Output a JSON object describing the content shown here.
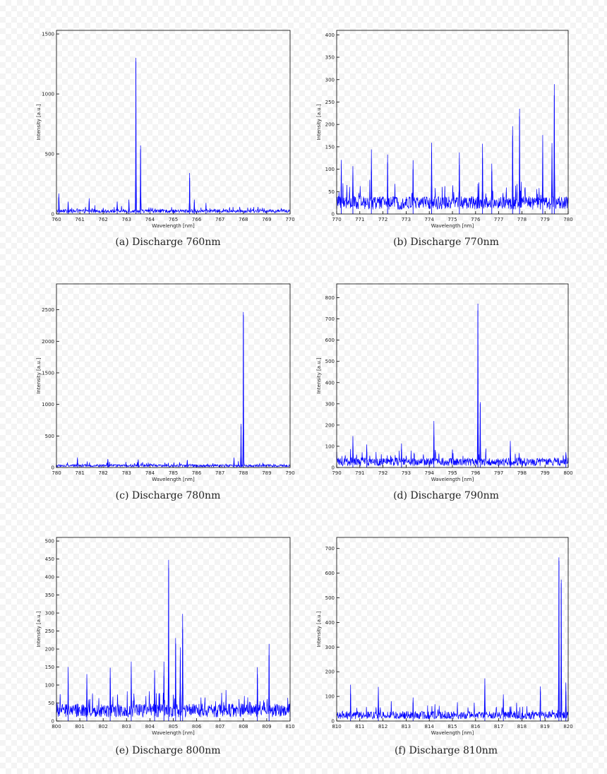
{
  "colors": {
    "line": "#0000ff",
    "axis": "#000000",
    "text": "#222222"
  },
  "chart_data": [
    {
      "type": "line",
      "caption": "(a) Discharge 760nm",
      "xlabel": "Wavelength [nm]",
      "ylabel": "Intensity [a.u.]",
      "xlim": [
        760,
        770
      ],
      "ylim": [
        0,
        1530
      ],
      "xticks": [
        760,
        761,
        762,
        763,
        764,
        765,
        766,
        767,
        768,
        769,
        770
      ],
      "yticks": [
        0,
        500,
        1000,
        1500
      ],
      "grid": false,
      "series": [
        {
          "baseline": 28,
          "noise": 28,
          "peaks": [
            {
              "x": 760.1,
              "y": 140
            },
            {
              "x": 760.5,
              "y": 90
            },
            {
              "x": 761.4,
              "y": 105
            },
            {
              "x": 762.6,
              "y": 85
            },
            {
              "x": 763.1,
              "y": 95
            },
            {
              "x": 763.4,
              "y": 1270
            },
            {
              "x": 763.6,
              "y": 540
            },
            {
              "x": 765.7,
              "y": 300
            },
            {
              "x": 765.9,
              "y": 95
            },
            {
              "x": 766.4,
              "y": 70
            }
          ]
        }
      ]
    },
    {
      "type": "line",
      "caption": "(b) Discharge 770nm",
      "xlabel": "Wavelength [nm]",
      "ylabel": "Intensity [a.u.]",
      "xlim": [
        770,
        780
      ],
      "ylim": [
        0,
        410
      ],
      "xticks": [
        770,
        771,
        772,
        773,
        774,
        775,
        776,
        777,
        778,
        779,
        780
      ],
      "yticks": [
        0,
        50,
        100,
        150,
        200,
        250,
        300,
        350,
        400
      ],
      "grid": false,
      "series": [
        {
          "baseline": 28,
          "noise": 30,
          "peaks": [
            {
              "x": 770.2,
              "y": 95
            },
            {
              "x": 770.7,
              "y": 92
            },
            {
              "x": 771.5,
              "y": 95
            },
            {
              "x": 772.2,
              "y": 115
            },
            {
              "x": 773.3,
              "y": 100
            },
            {
              "x": 774.1,
              "y": 138
            },
            {
              "x": 775.3,
              "y": 110
            },
            {
              "x": 776.3,
              "y": 125
            },
            {
              "x": 776.7,
              "y": 95
            },
            {
              "x": 777.6,
              "y": 175
            },
            {
              "x": 777.9,
              "y": 218
            },
            {
              "x": 778.9,
              "y": 125
            },
            {
              "x": 779.3,
              "y": 130
            },
            {
              "x": 779.4,
              "y": 265
            }
          ]
        }
      ]
    },
    {
      "type": "line",
      "caption": "(c) Discharge 780nm",
      "xlabel": "Wavelength [nm]",
      "ylabel": "Intensity [a.u.]",
      "xlim": [
        780,
        790
      ],
      "ylim": [
        0,
        2910
      ],
      "xticks": [
        780,
        781,
        782,
        783,
        784,
        785,
        786,
        787,
        788,
        789,
        790
      ],
      "yticks": [
        0,
        500,
        1000,
        1500,
        2000,
        2500
      ],
      "grid": false,
      "series": [
        {
          "baseline": 25,
          "noise": 40,
          "peaks": [
            {
              "x": 780.9,
              "y": 130
            },
            {
              "x": 782.2,
              "y": 110
            },
            {
              "x": 783.5,
              "y": 95
            },
            {
              "x": 785.6,
              "y": 110
            },
            {
              "x": 787.6,
              "y": 140
            },
            {
              "x": 787.9,
              "y": 650
            },
            {
              "x": 788.0,
              "y": 2420
            }
          ]
        }
      ]
    },
    {
      "type": "line",
      "caption": "(d) Discharge 790nm",
      "xlabel": "Wavelength [nm]",
      "ylabel": "Intensity [a.u.]",
      "xlim": [
        790,
        800
      ],
      "ylim": [
        0,
        865
      ],
      "xticks": [
        790,
        791,
        792,
        793,
        794,
        795,
        796,
        797,
        798,
        799,
        800
      ],
      "yticks": [
        0,
        100,
        200,
        300,
        400,
        500,
        600,
        700,
        800
      ],
      "grid": false,
      "series": [
        {
          "baseline": 22,
          "noise": 38,
          "peaks": [
            {
              "x": 790.7,
              "y": 120
            },
            {
              "x": 791.3,
              "y": 75
            },
            {
              "x": 792.8,
              "y": 85
            },
            {
              "x": 794.2,
              "y": 145
            },
            {
              "x": 796.1,
              "y": 740
            },
            {
              "x": 796.2,
              "y": 300
            },
            {
              "x": 797.5,
              "y": 95
            },
            {
              "x": 799.9,
              "y": 60
            }
          ]
        }
      ]
    },
    {
      "type": "line",
      "caption": "(e) Discharge 800nm",
      "xlabel": "Wavelength [nm]",
      "ylabel": "Intensity [a.u.]",
      "xlim": [
        800,
        810
      ],
      "ylim": [
        0,
        510
      ],
      "xticks": [
        800,
        801,
        802,
        803,
        804,
        805,
        806,
        807,
        808,
        809,
        810
      ],
      "yticks": [
        0,
        50,
        100,
        150,
        200,
        250,
        300,
        350,
        400,
        450,
        500
      ],
      "grid": false,
      "series": [
        {
          "baseline": 30,
          "noise": 38,
          "peaks": [
            {
              "x": 800.5,
              "y": 110
            },
            {
              "x": 801.3,
              "y": 100
            },
            {
              "x": 802.3,
              "y": 120
            },
            {
              "x": 803.2,
              "y": 130
            },
            {
              "x": 804.2,
              "y": 120
            },
            {
              "x": 804.6,
              "y": 125
            },
            {
              "x": 804.8,
              "y": 425
            },
            {
              "x": 805.1,
              "y": 215
            },
            {
              "x": 805.3,
              "y": 170
            },
            {
              "x": 805.4,
              "y": 255
            },
            {
              "x": 808.6,
              "y": 130
            },
            {
              "x": 809.1,
              "y": 183
            }
          ]
        }
      ]
    },
    {
      "type": "line",
      "caption": "(f) Discharge 810nm",
      "xlabel": "Wavelength [nm]",
      "ylabel": "Intensity [a.u.]",
      "xlim": [
        810,
        820
      ],
      "ylim": [
        0,
        745
      ],
      "xticks": [
        810,
        811,
        812,
        813,
        814,
        815,
        816,
        817,
        818,
        819,
        820
      ],
      "yticks": [
        0,
        100,
        200,
        300,
        400,
        500,
        600,
        700
      ],
      "grid": false,
      "series": [
        {
          "baseline": 22,
          "noise": 32,
          "peaks": [
            {
              "x": 810.6,
              "y": 110
            },
            {
              "x": 811.8,
              "y": 100
            },
            {
              "x": 813.3,
              "y": 75
            },
            {
              "x": 816.4,
              "y": 145
            },
            {
              "x": 817.2,
              "y": 90
            },
            {
              "x": 818.8,
              "y": 120
            },
            {
              "x": 819.6,
              "y": 650
            },
            {
              "x": 819.7,
              "y": 560
            },
            {
              "x": 819.9,
              "y": 120
            }
          ]
        }
      ]
    }
  ]
}
